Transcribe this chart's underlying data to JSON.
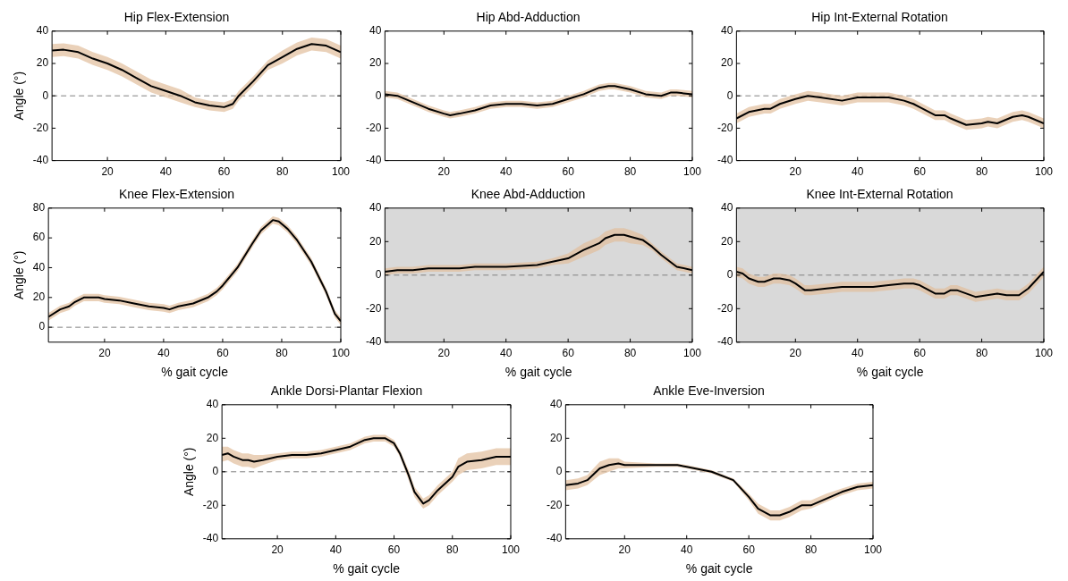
{
  "chart_data": [
    {
      "type": "line",
      "title": "Hip Flex-Extension",
      "ylabel": "Angle (°)",
      "xlim": [
        1,
        100
      ],
      "xticks": [
        20,
        40,
        60,
        80,
        100
      ],
      "ylim": [
        -40,
        40
      ],
      "yticks": [
        -40,
        -20,
        0,
        20,
        40
      ],
      "ref_lines": [
        {
          "axis": "y",
          "value": 0,
          "color": "#808080",
          "line_style": "dashed"
        }
      ],
      "marker": "none",
      "series": [
        {
          "color": "#000000",
          "x": [
            1,
            5,
            10,
            15,
            20,
            25,
            30,
            35,
            40,
            45,
            50,
            55,
            60,
            63,
            65,
            70,
            75,
            80,
            85,
            90,
            95,
            100
          ],
          "values": [
            28,
            28.5,
            27,
            23,
            20,
            16,
            11,
            6,
            3,
            0,
            -4,
            -6,
            -7,
            -5,
            0,
            9,
            19,
            24,
            29,
            32,
            31,
            27
          ],
          "lower": [
            24,
            24.5,
            23,
            19,
            16,
            12,
            7,
            2,
            -1,
            -4,
            -7,
            -9,
            -10,
            -8,
            -3,
            6,
            16,
            20,
            25,
            28,
            27,
            23
          ],
          "upper": [
            32,
            32.5,
            31,
            27,
            24,
            20,
            15,
            10,
            7,
            4,
            -1,
            -3,
            -4,
            -2,
            3,
            12,
            22,
            28,
            33,
            36,
            35,
            31
          ]
        }
      ]
    },
    {
      "type": "line",
      "title": "Hip Abd-Adduction",
      "xlim": [
        1,
        100
      ],
      "xticks": [
        20,
        40,
        60,
        80,
        100
      ],
      "ylim": [
        -40,
        40
      ],
      "yticks": [
        -40,
        -20,
        0,
        20,
        40
      ],
      "ref_lines": [
        {
          "axis": "y",
          "value": 0,
          "color": "#808080",
          "line_style": "dashed"
        }
      ],
      "marker": "none",
      "series": [
        {
          "color": "#000000",
          "x": [
            1,
            5,
            10,
            15,
            20,
            22,
            25,
            30,
            35,
            40,
            45,
            50,
            55,
            60,
            65,
            70,
            73,
            75,
            80,
            85,
            90,
            93,
            95,
            100
          ],
          "values": [
            1,
            0,
            -4,
            -8,
            -11,
            -12,
            -11,
            -9,
            -6,
            -5,
            -5,
            -6,
            -5,
            -2,
            1,
            5,
            6,
            6,
            4,
            1,
            0,
            2,
            2,
            1
          ],
          "lower": [
            -1,
            -2,
            -6,
            -10,
            -13,
            -14,
            -13,
            -11,
            -8,
            -7,
            -7,
            -8,
            -7,
            -4,
            -1,
            3,
            4,
            4,
            2,
            -1,
            -2,
            0,
            0,
            -1
          ],
          "upper": [
            3,
            2,
            -2,
            -6,
            -9,
            -10,
            -9,
            -7,
            -4,
            -3,
            -3,
            -4,
            -3,
            0,
            3,
            7,
            8,
            8,
            6,
            3,
            2,
            4,
            4,
            3
          ]
        }
      ]
    },
    {
      "type": "line",
      "title": "Hip Int-External Rotation",
      "xlim": [
        1,
        100
      ],
      "xticks": [
        20,
        40,
        60,
        80,
        100
      ],
      "ylim": [
        -40,
        40
      ],
      "yticks": [
        -40,
        -20,
        0,
        20,
        40
      ],
      "ref_lines": [
        {
          "axis": "y",
          "value": 0,
          "color": "#808080",
          "line_style": "dashed"
        }
      ],
      "marker": "none",
      "series": [
        {
          "color": "#000000",
          "x": [
            1,
            5,
            10,
            12,
            15,
            20,
            24,
            28,
            35,
            40,
            45,
            50,
            55,
            58,
            60,
            65,
            68,
            70,
            75,
            80,
            82,
            85,
            90,
            93,
            95,
            100
          ],
          "values": [
            -14,
            -10,
            -8,
            -8,
            -5,
            -2,
            0,
            -1,
            -3,
            -1,
            -1,
            -1,
            -3,
            -5,
            -7,
            -12,
            -12,
            -14,
            -18,
            -17,
            -16,
            -17,
            -13,
            -12,
            -13,
            -17
          ],
          "lower": [
            -17,
            -13,
            -11,
            -11,
            -8,
            -5,
            -3,
            -4,
            -6,
            -4,
            -4,
            -4,
            -6,
            -8,
            -10,
            -15,
            -15,
            -17,
            -21,
            -20,
            -19,
            -20,
            -16,
            -15,
            -16,
            -20
          ],
          "upper": [
            -11,
            -7,
            -5,
            -5,
            -2,
            1,
            3,
            2,
            0,
            2,
            2,
            2,
            0,
            -2,
            -4,
            -9,
            -9,
            -11,
            -15,
            -14,
            -13,
            -14,
            -10,
            -9,
            -10,
            -14
          ]
        }
      ]
    },
    {
      "type": "line",
      "title": "Knee Flex-Extension",
      "xlabel": "% gait cycle",
      "ylabel": "Angle (°)",
      "xlim": [
        1,
        100
      ],
      "xticks": [
        20,
        40,
        60,
        80,
        100
      ],
      "ylim": [
        -10,
        80
      ],
      "yticks": [
        0,
        20,
        40,
        60,
        80
      ],
      "ref_lines": [
        {
          "axis": "y",
          "value": 0,
          "color": "#808080",
          "line_style": "dashed"
        }
      ],
      "marker": "none",
      "series": [
        {
          "color": "#000000",
          "x": [
            1,
            5,
            8,
            10,
            13,
            18,
            20,
            25,
            30,
            35,
            40,
            42,
            45,
            50,
            55,
            58,
            60,
            65,
            70,
            73,
            77,
            79,
            82,
            85,
            90,
            95,
            98,
            100
          ],
          "values": [
            7,
            12,
            14,
            17,
            20,
            20,
            19,
            18,
            16,
            14,
            13,
            12,
            14,
            16,
            20,
            24,
            28,
            40,
            56,
            65,
            72,
            71,
            66,
            59,
            44,
            24,
            9,
            4
          ],
          "lower": [
            4.5,
            9.5,
            11.5,
            14.5,
            17.5,
            17.5,
            16.5,
            15.5,
            13.5,
            11.5,
            10.5,
            9.5,
            11.5,
            13.5,
            17.5,
            21.5,
            25.5,
            37.5,
            53.5,
            62.5,
            69.5,
            68.5,
            63.5,
            56.5,
            41.5,
            21.5,
            6.5,
            1.5
          ],
          "upper": [
            9.5,
            14.5,
            16.5,
            19.5,
            22.5,
            22.5,
            21.5,
            20.5,
            18.5,
            16.5,
            15.5,
            14.5,
            16.5,
            18.5,
            22.5,
            26.5,
            30.5,
            42.5,
            58.5,
            67.5,
            74.5,
            73.5,
            68.5,
            61.5,
            46.5,
            26.5,
            11.5,
            6.5
          ]
        }
      ]
    },
    {
      "type": "line",
      "title": "Knee Abd-Adduction",
      "xlabel": "% gait cycle",
      "xlim": [
        1,
        100
      ],
      "xticks": [
        20,
        40,
        60,
        80,
        100
      ],
      "ylim": [
        -40,
        40
      ],
      "yticks": [
        -40,
        -20,
        0,
        20,
        40
      ],
      "ref_lines": [
        {
          "axis": "y",
          "value": 0,
          "color": "#808080",
          "line_style": "dashed"
        }
      ],
      "bands": [
        {
          "axis": "y",
          "from": -40,
          "to": 40,
          "color": "#d9d9d9"
        }
      ],
      "marker": "none",
      "series": [
        {
          "color": "#000000",
          "x": [
            1,
            5,
            10,
            15,
            20,
            25,
            30,
            40,
            45,
            50,
            55,
            60,
            65,
            70,
            72,
            75,
            78,
            80,
            84,
            87,
            90,
            95,
            100
          ],
          "values": [
            2,
            3,
            3,
            4,
            4,
            4,
            5,
            5,
            5.5,
            6,
            8,
            10,
            15,
            19,
            22,
            24,
            24,
            23,
            21,
            17,
            12,
            5,
            3
          ],
          "lower": [
            0,
            1,
            1,
            2,
            2,
            2,
            3,
            3,
            3.5,
            4,
            6,
            7,
            11,
            15,
            18,
            20,
            20,
            19,
            18,
            15,
            10,
            3,
            1
          ],
          "upper": [
            4,
            5,
            5,
            6,
            6,
            6,
            7,
            7,
            7.5,
            8,
            10,
            13,
            19,
            23,
            26,
            28,
            28,
            27,
            24,
            19,
            14,
            7,
            5
          ]
        }
      ]
    },
    {
      "type": "line",
      "title": "Knee Int-External Rotation",
      "xlabel": "% gait cycle",
      "xlim": [
        1,
        100
      ],
      "xticks": [
        20,
        40,
        60,
        80,
        100
      ],
      "ylim": [
        -40,
        40
      ],
      "yticks": [
        -40,
        -20,
        0,
        20,
        40
      ],
      "ref_lines": [
        {
          "axis": "y",
          "value": 0,
          "color": "#808080",
          "line_style": "dashed"
        }
      ],
      "bands": [
        {
          "axis": "y",
          "from": -40,
          "to": 40,
          "color": "#d9d9d9"
        }
      ],
      "marker": "none",
      "series": [
        {
          "color": "#000000",
          "x": [
            1,
            3,
            5,
            8,
            10,
            13,
            15,
            18,
            20,
            23,
            25,
            30,
            35,
            40,
            45,
            50,
            55,
            58,
            60,
            65,
            68,
            70,
            72,
            75,
            78,
            85,
            88,
            92,
            95,
            100
          ],
          "values": [
            2,
            1,
            -2,
            -4,
            -4,
            -2,
            -2,
            -3,
            -5,
            -9,
            -9,
            -8,
            -7,
            -7,
            -7,
            -6,
            -5,
            -5,
            -6,
            -11,
            -11,
            -9,
            -9,
            -11,
            -13,
            -11,
            -12,
            -12,
            -8,
            2
          ],
          "lower": [
            -1,
            -2,
            -5,
            -7,
            -7,
            -5,
            -5,
            -6,
            -8,
            -12,
            -12,
            -11,
            -10,
            -10,
            -10,
            -9,
            -8,
            -8,
            -9,
            -14,
            -14,
            -12,
            -12,
            -14,
            -16,
            -14,
            -15,
            -15,
            -11,
            -1
          ],
          "upper": [
            5,
            4,
            1,
            -1,
            -1,
            1,
            1,
            0,
            -2,
            -6,
            -6,
            -5,
            -4,
            -4,
            -4,
            -3,
            -2,
            -2,
            -3,
            -8,
            -8,
            -6,
            -6,
            -8,
            -10,
            -8,
            -9,
            -9,
            -5,
            5
          ]
        }
      ]
    },
    {
      "type": "line",
      "title": "Ankle Dorsi-Plantar Flexion",
      "xlabel": "% gait cycle",
      "ylabel": "Angle (°)",
      "xlim": [
        1,
        100
      ],
      "xticks": [
        20,
        40,
        60,
        80,
        100
      ],
      "ylim": [
        -40,
        40
      ],
      "yticks": [
        -40,
        -20,
        0,
        20,
        40
      ],
      "ref_lines": [
        {
          "axis": "y",
          "value": 0,
          "color": "#808080",
          "line_style": "dashed"
        }
      ],
      "marker": "none",
      "series": [
        {
          "color": "#000000",
          "x": [
            1,
            3,
            5,
            8,
            10,
            12,
            15,
            20,
            25,
            30,
            35,
            40,
            45,
            50,
            53,
            57,
            60,
            62,
            65,
            67,
            70,
            72,
            75,
            80,
            82,
            85,
            90,
            95,
            100
          ],
          "values": [
            10,
            11,
            9,
            7,
            7,
            6,
            7,
            9,
            10,
            10,
            11,
            13,
            15,
            19,
            20,
            20,
            17,
            11,
            -2,
            -12,
            -19,
            -17,
            -11,
            -3,
            3,
            6,
            7,
            9,
            9
          ],
          "lower": [
            6,
            7,
            5,
            3,
            3,
            2,
            4,
            7,
            8,
            8,
            9,
            11,
            13,
            17,
            18,
            18,
            15,
            9,
            -5,
            -15,
            -22,
            -20,
            -14,
            -6,
            -2,
            1,
            2,
            4,
            4
          ],
          "upper": [
            15,
            15,
            13,
            11,
            11,
            10,
            10,
            11,
            12,
            12,
            13,
            15,
            17,
            21,
            22,
            22,
            19,
            13,
            1,
            -9,
            -16,
            -14,
            -8,
            0,
            8,
            11,
            12,
            14,
            14
          ]
        }
      ]
    },
    {
      "type": "line",
      "title": "Ankle Eve-Inversion",
      "xlabel": "% gait cycle",
      "xlim": [
        1,
        100
      ],
      "xticks": [
        20,
        40,
        60,
        80,
        100
      ],
      "ylim": [
        -40,
        40
      ],
      "yticks": [
        -40,
        -20,
        0,
        20,
        40
      ],
      "ref_lines": [
        {
          "axis": "y",
          "value": 0,
          "color": "#808080",
          "line_style": "dashed"
        }
      ],
      "marker": "none",
      "series": [
        {
          "color": "#000000",
          "x": [
            1,
            5,
            8,
            12,
            15,
            18,
            20,
            30,
            37,
            40,
            48,
            55,
            60,
            63,
            67,
            70,
            73,
            77,
            80,
            85,
            90,
            95,
            100
          ],
          "values": [
            -8,
            -7,
            -5,
            2,
            4,
            5,
            4,
            4,
            4,
            3,
            0,
            -5,
            -15,
            -22,
            -26,
            -26,
            -24,
            -20,
            -20,
            -16,
            -12,
            -9,
            -8
          ],
          "lower": [
            -11,
            -10,
            -8,
            -2,
            0,
            2,
            2,
            3,
            3,
            2,
            -1,
            -6,
            -17,
            -25,
            -29,
            -29,
            -27,
            -23,
            -22,
            -18,
            -14,
            -11,
            -10
          ],
          "upper": [
            -5,
            -4,
            -2,
            6,
            8,
            8,
            6,
            5,
            5,
            4,
            1,
            -4,
            -13,
            -19,
            -23,
            -23,
            -21,
            -17,
            -17,
            -13,
            -10,
            -7,
            -6
          ]
        }
      ]
    }
  ]
}
